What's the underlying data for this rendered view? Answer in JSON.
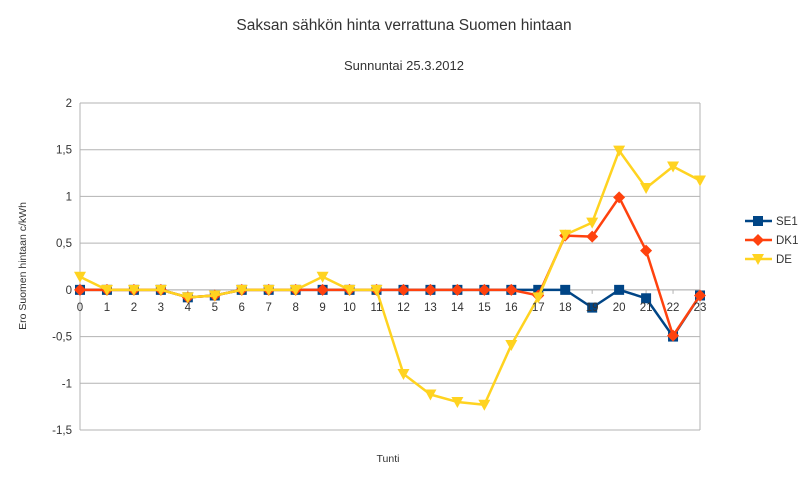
{
  "chart_data": {
    "type": "line",
    "title": "Saksan sähkön hinta verrattuna Suomen hintaan",
    "subtitle": "Sunnuntai 25.3.2012",
    "xlabel": "Tunti",
    "ylabel": "Ero Suomen hintaan c/kWh",
    "x": [
      0,
      1,
      2,
      3,
      4,
      5,
      6,
      7,
      8,
      9,
      10,
      11,
      12,
      13,
      14,
      15,
      16,
      17,
      18,
      19,
      20,
      21,
      22,
      23
    ],
    "x_tick_labels": [
      "0",
      "1",
      "2",
      "3",
      "4",
      "5",
      "6",
      "7",
      "8",
      "9",
      "10",
      "11",
      "12",
      "13",
      "14",
      "15",
      "16",
      "17",
      "18",
      "19",
      "20",
      "21",
      "22",
      "23"
    ],
    "ylim": [
      -1.5,
      2
    ],
    "y_ticks": [
      -1.5,
      -1,
      -0.5,
      0,
      0.5,
      1,
      1.5,
      2
    ],
    "y_tick_labels": [
      "-1,5",
      "-1",
      "-0,5",
      "0",
      "0,5",
      "1",
      "1,5",
      "2"
    ],
    "grid": "horizontal",
    "legend_position": "right",
    "series": [
      {
        "name": "SE1",
        "color": "#004586",
        "marker": "square",
        "values": [
          0,
          0,
          0,
          0,
          -0.08,
          -0.06,
          0,
          0,
          0,
          0,
          0,
          0,
          0,
          0,
          0,
          0,
          0,
          0,
          0,
          -0.19,
          0,
          -0.09,
          -0.5,
          -0.06
        ]
      },
      {
        "name": "DK1",
        "color": "#ff420e",
        "marker": "diamond",
        "values": [
          0,
          0,
          0,
          0,
          -0.08,
          -0.06,
          0,
          0,
          0,
          0,
          0,
          0,
          0,
          0,
          0,
          0,
          0,
          -0.06,
          0.58,
          0.57,
          0.99,
          0.42,
          -0.49,
          -0.06
        ]
      },
      {
        "name": "DE",
        "color": "#ffd320",
        "marker": "triangle-down",
        "values": [
          0.14,
          0,
          0,
          0,
          -0.08,
          -0.06,
          0,
          0,
          0,
          0.14,
          0,
          0,
          -0.9,
          -1.12,
          -1.2,
          -1.23,
          -0.59,
          -0.08,
          0.59,
          0.72,
          1.49,
          1.09,
          1.32,
          1.17
        ]
      }
    ]
  }
}
